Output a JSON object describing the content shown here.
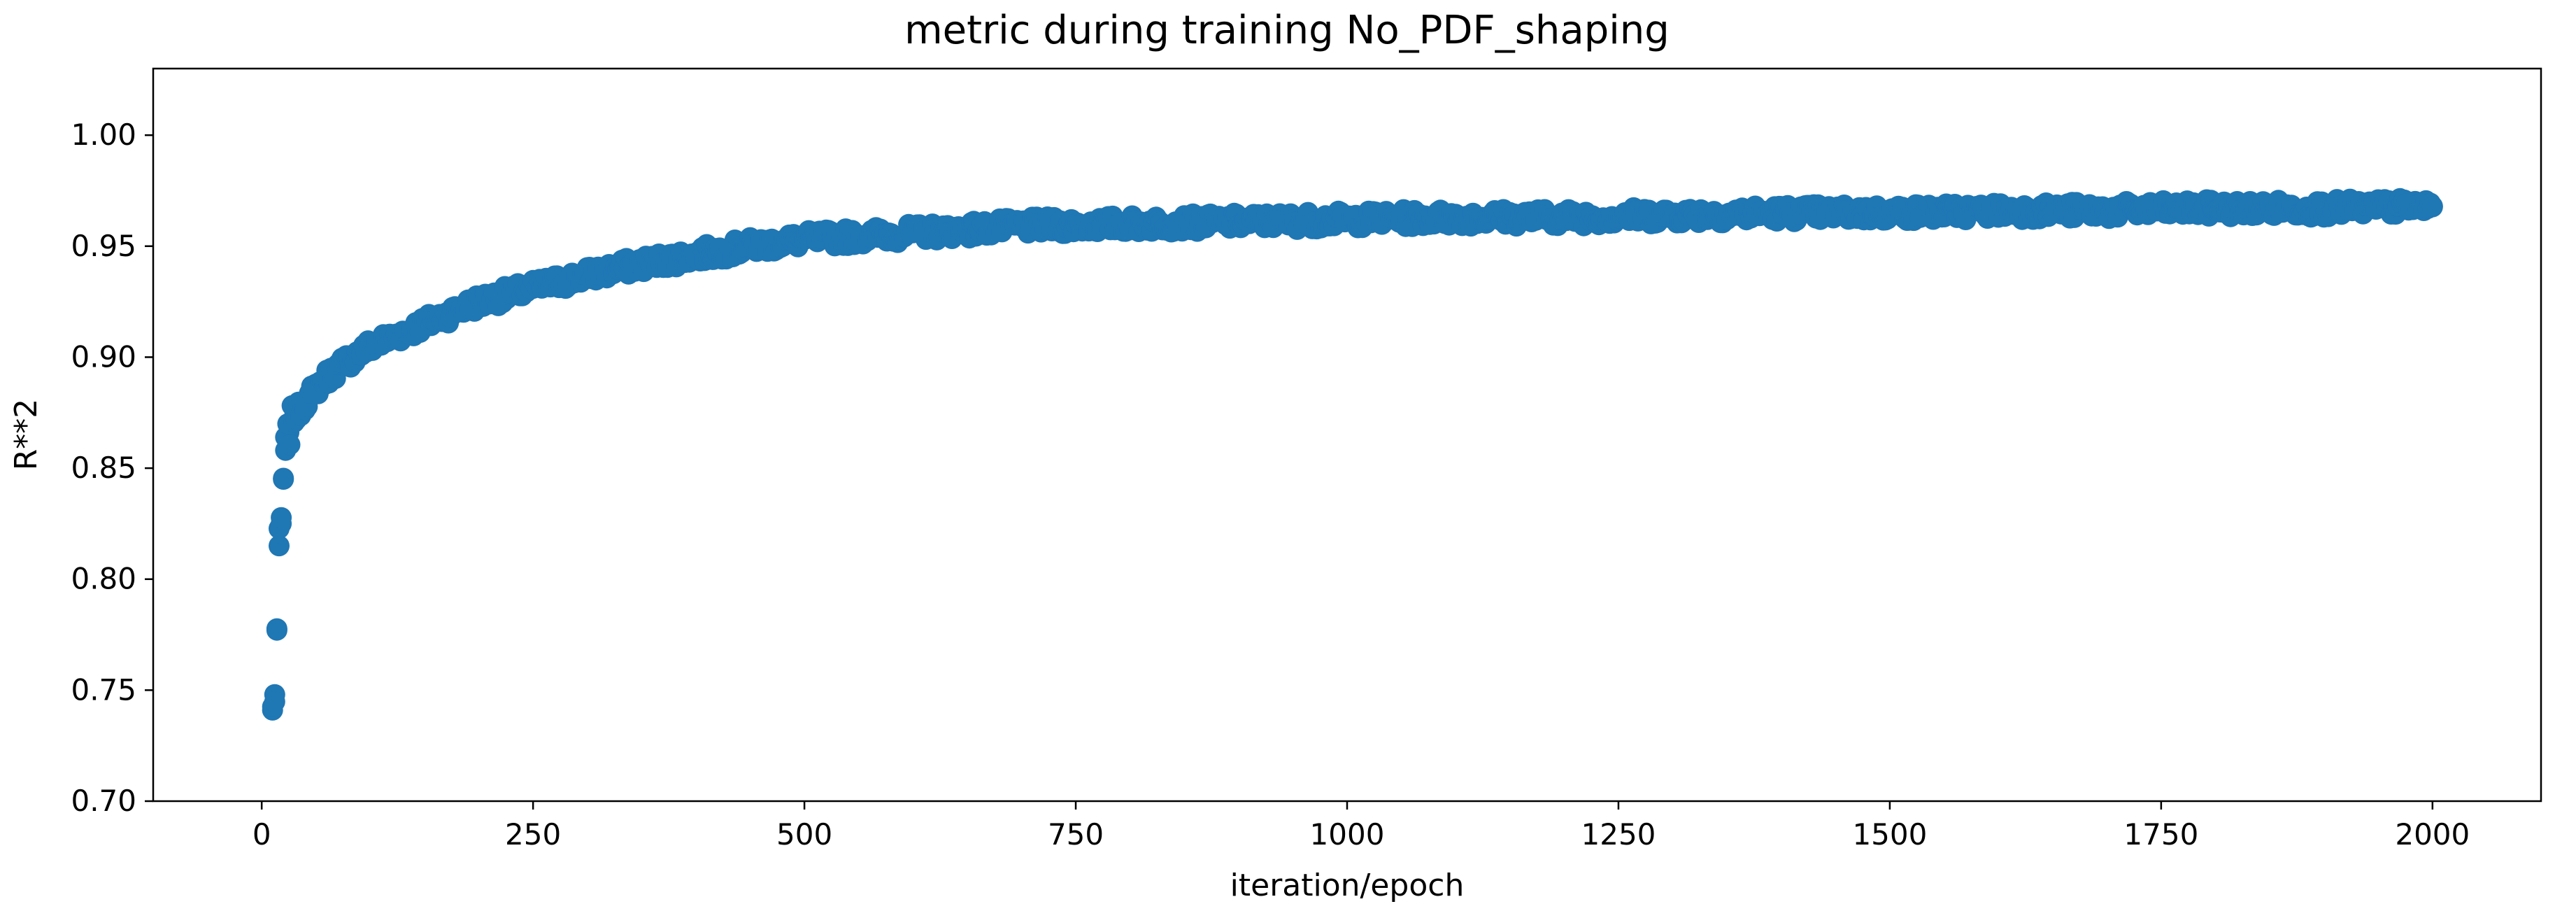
{
  "chart_data": {
    "type": "scatter",
    "title": "metric during training No_PDF_shaping",
    "xlabel": "iteration/epoch",
    "ylabel": "R**2",
    "xlim": [
      -100,
      2100
    ],
    "ylim": [
      0.7,
      1.03
    ],
    "xticks": [
      0,
      250,
      500,
      750,
      1000,
      1250,
      1500,
      1750,
      2000
    ],
    "xtick_labels": [
      "0",
      "250",
      "500",
      "750",
      "1000",
      "1250",
      "1500",
      "1750",
      "2000"
    ],
    "yticks": [
      0.7,
      0.75,
      0.8,
      0.85,
      0.9,
      0.95,
      1.0
    ],
    "ytick_labels": [
      "0.70",
      "0.75",
      "0.80",
      "0.85",
      "0.90",
      "0.95",
      "1.00"
    ],
    "grid": false,
    "legend": "none",
    "marker_color": "#1f77b4",
    "x": [
      10,
      12,
      14,
      16,
      18,
      20,
      22,
      25,
      30,
      40,
      50,
      60,
      75,
      100,
      125,
      150,
      175,
      200,
      250,
      300,
      350,
      400,
      450,
      500,
      600,
      700,
      800,
      900,
      1000,
      1100,
      1200,
      1300,
      1400,
      1500,
      1600,
      1700,
      1800,
      1900,
      2000
    ],
    "y": [
      0.741,
      0.748,
      0.777,
      0.815,
      0.825,
      0.845,
      0.858,
      0.866,
      0.873,
      0.88,
      0.886,
      0.891,
      0.897,
      0.905,
      0.91,
      0.915,
      0.92,
      0.925,
      0.931,
      0.937,
      0.942,
      0.946,
      0.95,
      0.953,
      0.956,
      0.959,
      0.96,
      0.961,
      0.962,
      0.963,
      0.963,
      0.964,
      0.965,
      0.965,
      0.966,
      0.966,
      0.967,
      0.967,
      0.968
    ],
    "noise": 0.004
  }
}
